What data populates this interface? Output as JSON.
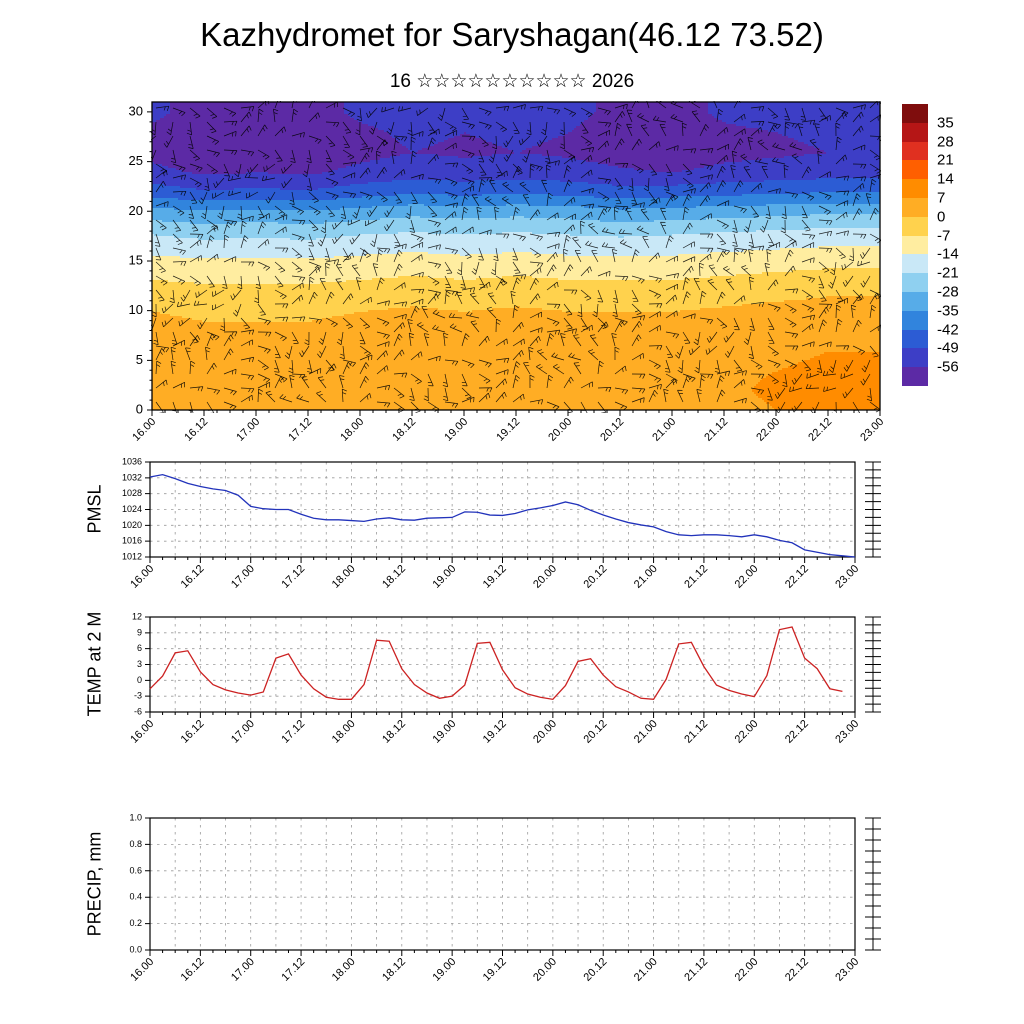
{
  "title": "Kazhydromet for Saryshagan(46.12 73.52)",
  "date_line": {
    "day": "16",
    "stars": "☆☆☆☆☆☆☆☆☆☆",
    "year": "2026"
  },
  "x_axis": {
    "tick_labels": [
      "16.00",
      "16.12",
      "17.00",
      "17.12",
      "18.00",
      "18.12",
      "19.00",
      "19.12",
      "20.00",
      "20.12",
      "21.00",
      "21.12",
      "22.00",
      "22.12",
      "23.00"
    ],
    "hours_range": [
      0,
      168
    ],
    "major_step_hours": 12,
    "minor_step_hours": 3,
    "grid_step_hours": 6
  },
  "chart_data": [
    {
      "type": "heatmap",
      "name": "wind-temperature-height-cross-section",
      "ylabel": "",
      "ylim": [
        0,
        31
      ],
      "yticks": [
        0,
        5,
        10,
        15,
        20,
        25,
        30
      ],
      "overlay": "wind-barbs",
      "grid_levels": [
        0,
        2,
        4,
        6,
        8,
        10,
        12,
        14,
        16,
        18,
        20,
        22,
        24,
        26,
        28,
        30
      ],
      "temperature_grid": [
        [
          3,
          2,
          3,
          2,
          4,
          6,
          4,
          5,
          6,
          4,
          4,
          5,
          7,
          8,
          7
        ],
        [
          4,
          3,
          4,
          3,
          5,
          7,
          5,
          6,
          6,
          5,
          5,
          6,
          8,
          9,
          8
        ],
        [
          5,
          4,
          4,
          4,
          5,
          6,
          5,
          6,
          5,
          5,
          5,
          6,
          7,
          8,
          8
        ],
        [
          4,
          3,
          3,
          3,
          4,
          5,
          4,
          5,
          4,
          4,
          4,
          5,
          6,
          7,
          7
        ],
        [
          2,
          1,
          1,
          1,
          2,
          3,
          2,
          3,
          2,
          2,
          2,
          3,
          4,
          5,
          5
        ],
        [
          0,
          -1,
          -1,
          -1,
          0,
          1,
          0,
          1,
          0,
          0,
          0,
          1,
          2,
          3,
          3
        ],
        [
          -4,
          -5,
          -5,
          -5,
          -4,
          -3,
          -4,
          -3,
          -4,
          -4,
          -4,
          -3,
          -2,
          -1,
          -1
        ],
        [
          -9,
          -10,
          -10,
          -10,
          -9,
          -8,
          -9,
          -8,
          -9,
          -9,
          -9,
          -8,
          -7,
          -6,
          -6
        ],
        [
          -15,
          -16,
          -16,
          -16,
          -15,
          -14,
          -15,
          -14,
          -15,
          -15,
          -15,
          -14,
          -13,
          -12,
          -12
        ],
        [
          -22,
          -24,
          -23,
          -24,
          -22,
          -21,
          -22,
          -21,
          -22,
          -23,
          -22,
          -21,
          -20,
          -19,
          -19
        ],
        [
          -32,
          -34,
          -33,
          -34,
          -32,
          -30,
          -31,
          -30,
          -31,
          -33,
          -32,
          -31,
          -30,
          -29,
          -29
        ],
        [
          -45,
          -48,
          -47,
          -48,
          -45,
          -43,
          -44,
          -43,
          -44,
          -46,
          -45,
          -44,
          -43,
          -42,
          -42
        ],
        [
          -54,
          -57,
          -56,
          -57,
          -54,
          -52,
          -53,
          -52,
          -53,
          -55,
          -56,
          -54,
          -53,
          -52,
          -52
        ],
        [
          -58,
          -61,
          -60,
          -61,
          -58,
          -56,
          -57,
          -56,
          -57,
          -59,
          -61,
          -58,
          -57,
          -56,
          -56
        ],
        [
          -57,
          -60,
          -59,
          -60,
          -57,
          -55,
          -56,
          -55,
          -56,
          -58,
          -60,
          -57,
          -56,
          -55,
          -55
        ],
        [
          -55,
          -58,
          -57,
          -58,
          -55,
          -54,
          -55,
          -54,
          -55,
          -57,
          -58,
          -55,
          -54,
          -53,
          -53
        ]
      ],
      "colorbar_ticks": [
        35,
        28,
        21,
        14,
        7,
        0,
        -7,
        -14,
        -21,
        -28,
        -35,
        -42,
        -49,
        -56
      ],
      "colorbar_colors": [
        "#7f0d0d",
        "#b51616",
        "#e03020",
        "#ff5f00",
        "#ff8c00",
        "#ffad24",
        "#ffd24d",
        "#ffeda0",
        "#c9e8f7",
        "#8fd0f0",
        "#57ace8",
        "#3184dd",
        "#2c5cd4",
        "#3d3ec6",
        "#5c2aa5"
      ]
    },
    {
      "type": "line",
      "name": "PMSL",
      "ylabel": "PMSL",
      "color": "#2233bb",
      "ylim": [
        1012,
        1036
      ],
      "yticks": [
        1012,
        1016,
        1020,
        1024,
        1028,
        1032,
        1036
      ],
      "ytick_labels": [
        "1012",
        "1016",
        "1020",
        "1024",
        "1028",
        "1032",
        "1036"
      ],
      "x_start_hour": 0,
      "x_step_hours": 3,
      "values": [
        1032.2,
        1032.8,
        1031.8,
        1030.6,
        1029.8,
        1029.2,
        1028.8,
        1027.6,
        1024.8,
        1024.2,
        1024.0,
        1024.0,
        1022.8,
        1021.8,
        1021.4,
        1021.4,
        1021.2,
        1021.0,
        1021.6,
        1021.9,
        1021.4,
        1021.3,
        1021.8,
        1021.9,
        1022.0,
        1023.4,
        1023.3,
        1022.6,
        1022.5,
        1023.0,
        1023.9,
        1024.4,
        1025.0,
        1025.9,
        1025.2,
        1023.8,
        1022.6,
        1021.6,
        1020.7,
        1020.1,
        1019.6,
        1018.4,
        1017.6,
        1017.4,
        1017.6,
        1017.6,
        1017.4,
        1017.1,
        1017.6,
        1017.1,
        1016.2,
        1015.6,
        1013.8,
        1013.2,
        1012.6,
        1012.3,
        1012.0
      ]
    },
    {
      "type": "line",
      "name": "TEMP at 2 M",
      "ylabel": "TEMP at 2 M",
      "color": "#cc2222",
      "ylim": [
        -6,
        12
      ],
      "yticks": [
        -6,
        -3,
        0,
        3,
        6,
        9,
        12
      ],
      "ytick_labels": [
        "-6",
        "-3",
        "0",
        "3",
        "6",
        "9",
        "12"
      ],
      "x_start_hour": 0,
      "x_step_hours": 3,
      "values": [
        -1.6,
        0.8,
        5.2,
        5.6,
        1.6,
        -0.8,
        -1.8,
        -2.4,
        -2.8,
        -2.2,
        4.2,
        5.0,
        1.0,
        -1.6,
        -3.2,
        -3.6,
        -3.6,
        -0.8,
        7.6,
        7.4,
        2.2,
        -0.8,
        -2.4,
        -3.4,
        -3.0,
        -0.9,
        7.0,
        7.2,
        2.0,
        -1.4,
        -2.6,
        -3.2,
        -3.6,
        -1.0,
        3.6,
        4.1,
        1.0,
        -1.2,
        -2.2,
        -3.4,
        -3.6,
        0.2,
        6.9,
        7.2,
        2.6,
        -0.9,
        -1.9,
        -2.6,
        -3.1,
        0.9,
        9.6,
        10.1,
        4.2,
        2.2,
        -1.6,
        -2.1
      ]
    },
    {
      "type": "line",
      "name": "PRECIP, mm",
      "ylabel": "PRECIP, mm",
      "color": "#22aa22",
      "ylim": [
        0,
        1
      ],
      "yticks": [
        0,
        0.2,
        0.4,
        0.6,
        0.8,
        1
      ],
      "ytick_labels": [
        "0.0",
        "0.2",
        "0.4",
        "0.6",
        "0.8",
        "1.0"
      ],
      "x_start_hour": 0,
      "x_step_hours": 3,
      "values": []
    }
  ]
}
